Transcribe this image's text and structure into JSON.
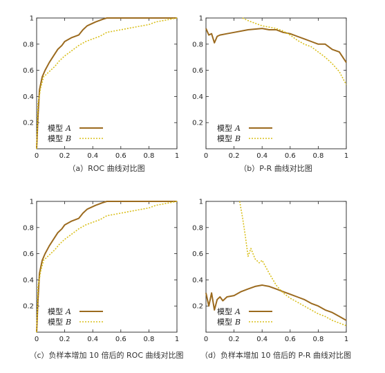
{
  "colors": {
    "model_a": "#9b6a1e",
    "model_b": "#d9bf1a",
    "axis": "#222222"
  },
  "chart_data": [
    {
      "type": "line",
      "caption": "（a）ROC 曲线对比图",
      "xlim": [
        0,
        1
      ],
      "ylim": [
        0,
        1
      ],
      "x_ticks": [
        "0",
        "0.2",
        "0.4",
        "0.6",
        "0.8",
        "1"
      ],
      "y_ticks": [
        "0.2",
        "0.4",
        "0.6",
        "0.8",
        "1"
      ],
      "grid": false,
      "legend_position": "bottom-left",
      "series": [
        {
          "name": "模型 A",
          "style": "solid",
          "x": [
            0,
            0.01,
            0.02,
            0.04,
            0.06,
            0.09,
            0.12,
            0.15,
            0.18,
            0.2,
            0.25,
            0.3,
            0.33,
            0.36,
            0.42,
            0.47,
            0.5,
            0.6,
            0.7,
            0.8,
            0.9,
            1.0
          ],
          "y": [
            0,
            0.25,
            0.45,
            0.55,
            0.6,
            0.66,
            0.71,
            0.76,
            0.79,
            0.82,
            0.85,
            0.87,
            0.91,
            0.94,
            0.97,
            0.99,
            1.0,
            1.0,
            1.0,
            1.0,
            1.0,
            1.0
          ]
        },
        {
          "name": "模型 B",
          "style": "dotted",
          "x": [
            0,
            0.01,
            0.03,
            0.05,
            0.08,
            0.1,
            0.13,
            0.16,
            0.2,
            0.25,
            0.3,
            0.35,
            0.4,
            0.45,
            0.5,
            0.6,
            0.7,
            0.8,
            0.85,
            0.9,
            0.95,
            1.0
          ],
          "y": [
            0,
            0.35,
            0.47,
            0.55,
            0.58,
            0.6,
            0.63,
            0.67,
            0.71,
            0.75,
            0.79,
            0.82,
            0.84,
            0.86,
            0.89,
            0.91,
            0.93,
            0.95,
            0.97,
            0.98,
            0.99,
            1.0
          ]
        }
      ],
      "legend_labels": [
        {
          "text": "模型",
          "var": "A"
        },
        {
          "text": "模型",
          "var": "B"
        }
      ]
    },
    {
      "type": "line",
      "caption": "（b）P-R 曲线对比图",
      "xlim": [
        0,
        1
      ],
      "ylim": [
        0,
        1
      ],
      "x_ticks": [
        "0",
        "0.2",
        "0.4",
        "0.6",
        "0.8",
        "1"
      ],
      "y_ticks": [
        "0.2",
        "0.4",
        "0.6",
        "0.8",
        "1"
      ],
      "grid": false,
      "legend_position": "bottom-left",
      "series": [
        {
          "name": "模型 A",
          "style": "solid",
          "x": [
            0,
            0.02,
            0.04,
            0.06,
            0.08,
            0.1,
            0.15,
            0.2,
            0.3,
            0.4,
            0.45,
            0.5,
            0.55,
            0.6,
            0.65,
            0.7,
            0.75,
            0.8,
            0.85,
            0.9,
            0.95,
            1.0
          ],
          "y": [
            0.92,
            0.87,
            0.88,
            0.81,
            0.86,
            0.87,
            0.88,
            0.89,
            0.91,
            0.92,
            0.91,
            0.91,
            0.89,
            0.88,
            0.86,
            0.84,
            0.82,
            0.8,
            0.8,
            0.76,
            0.74,
            0.66
          ]
        },
        {
          "name": "模型 B",
          "style": "dotted",
          "x": [
            0.26,
            0.3,
            0.35,
            0.4,
            0.45,
            0.5,
            0.55,
            0.6,
            0.65,
            0.7,
            0.75,
            0.8,
            0.85,
            0.9,
            0.95,
            1.0
          ],
          "y": [
            1.0,
            0.98,
            0.96,
            0.94,
            0.93,
            0.92,
            0.9,
            0.87,
            0.83,
            0.8,
            0.78,
            0.74,
            0.7,
            0.65,
            0.59,
            0.49
          ]
        }
      ],
      "legend_labels": [
        {
          "text": "模型",
          "var": "A"
        },
        {
          "text": "模型",
          "var": "B"
        }
      ]
    },
    {
      "type": "line",
      "caption": "（c）负样本增加 10 倍后的 ROC 曲线对比图",
      "xlim": [
        0,
        1
      ],
      "ylim": [
        0,
        1
      ],
      "x_ticks": [
        "0",
        "0.2",
        "0.4",
        "0.6",
        "0.8",
        "1"
      ],
      "y_ticks": [
        "0.2",
        "0.4",
        "0.6",
        "0.8",
        "1"
      ],
      "grid": false,
      "legend_position": "bottom-left",
      "series": [
        {
          "name": "模型 A",
          "style": "solid",
          "x": [
            0,
            0.01,
            0.02,
            0.04,
            0.06,
            0.09,
            0.12,
            0.15,
            0.18,
            0.2,
            0.25,
            0.3,
            0.33,
            0.36,
            0.42,
            0.47,
            0.5,
            0.6,
            0.7,
            0.8,
            0.9,
            1.0
          ],
          "y": [
            0,
            0.25,
            0.45,
            0.55,
            0.6,
            0.66,
            0.71,
            0.76,
            0.79,
            0.82,
            0.85,
            0.87,
            0.91,
            0.94,
            0.97,
            0.99,
            1.0,
            1.0,
            1.0,
            1.0,
            1.0,
            1.0
          ]
        },
        {
          "name": "模型 B",
          "style": "dotted",
          "x": [
            0,
            0.01,
            0.03,
            0.05,
            0.08,
            0.1,
            0.13,
            0.16,
            0.2,
            0.25,
            0.3,
            0.35,
            0.4,
            0.45,
            0.5,
            0.6,
            0.7,
            0.8,
            0.85,
            0.9,
            0.95,
            1.0
          ],
          "y": [
            0,
            0.35,
            0.47,
            0.55,
            0.58,
            0.6,
            0.63,
            0.67,
            0.71,
            0.75,
            0.79,
            0.82,
            0.84,
            0.86,
            0.89,
            0.91,
            0.93,
            0.95,
            0.97,
            0.98,
            0.99,
            1.0
          ]
        }
      ],
      "legend_labels": [
        {
          "text": "模型",
          "var": "A"
        },
        {
          "text": "模型",
          "var": "B"
        }
      ]
    },
    {
      "type": "line",
      "caption": "（d）负样本增加 10 倍后的 P-R 曲线对比图",
      "xlim": [
        0,
        1
      ],
      "ylim": [
        0,
        1
      ],
      "x_ticks": [
        "0",
        "0.2",
        "0.4",
        "0.6",
        "0.8",
        "1"
      ],
      "y_ticks": [
        "0.2",
        "0.4",
        "0.6",
        "0.8",
        "1"
      ],
      "grid": false,
      "legend_position": "bottom-left",
      "series": [
        {
          "name": "模型 A",
          "style": "solid",
          "x": [
            0,
            0.02,
            0.04,
            0.06,
            0.08,
            0.1,
            0.12,
            0.15,
            0.2,
            0.25,
            0.3,
            0.35,
            0.4,
            0.45,
            0.5,
            0.55,
            0.6,
            0.65,
            0.7,
            0.75,
            0.8,
            0.85,
            0.9,
            0.95,
            1.0
          ],
          "y": [
            0.3,
            0.2,
            0.3,
            0.17,
            0.25,
            0.27,
            0.24,
            0.27,
            0.28,
            0.31,
            0.33,
            0.35,
            0.36,
            0.35,
            0.33,
            0.31,
            0.29,
            0.27,
            0.25,
            0.22,
            0.2,
            0.17,
            0.15,
            0.12,
            0.09
          ]
        },
        {
          "name": "模型 B",
          "style": "dotted",
          "x": [
            0.24,
            0.26,
            0.28,
            0.3,
            0.32,
            0.35,
            0.38,
            0.4,
            0.42,
            0.45,
            0.5,
            0.55,
            0.6,
            0.65,
            0.7,
            0.75,
            0.8,
            0.85,
            0.9,
            0.95,
            1.0
          ],
          "y": [
            1.0,
            0.88,
            0.74,
            0.58,
            0.64,
            0.56,
            0.53,
            0.55,
            0.51,
            0.45,
            0.36,
            0.3,
            0.26,
            0.23,
            0.2,
            0.17,
            0.14,
            0.12,
            0.09,
            0.07,
            0.05
          ]
        }
      ],
      "legend_labels": [
        {
          "text": "模型",
          "var": "A"
        },
        {
          "text": "模型",
          "var": "B"
        }
      ]
    }
  ]
}
